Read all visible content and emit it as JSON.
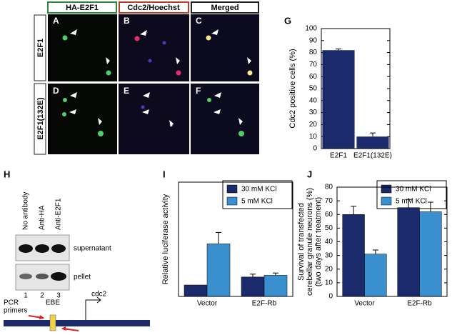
{
  "micrograph": {
    "columns": [
      "HA-E2F1",
      "Cdc2/Hoechst",
      "Merged"
    ],
    "rows": [
      "E2F1",
      "E2F1(132E)"
    ],
    "panel_letters": [
      "A",
      "B",
      "C",
      "D",
      "E",
      "F"
    ]
  },
  "gel": {
    "label": "H",
    "lanes": [
      "No antibody",
      "Anti-HA",
      "Anti-E2F1"
    ],
    "rows": [
      "supernatant",
      "pellet"
    ],
    "lane_numbers": [
      "1",
      "2",
      "3"
    ],
    "diagram": {
      "primers": [
        "PCR",
        "primers"
      ],
      "element": "EBE",
      "gene": "cdc2"
    }
  },
  "chart_data": [
    {
      "type": "bar",
      "label": "G",
      "ylabel": [
        "Cdc2 positive cells (%)"
      ],
      "categories": [
        "E2F1",
        "E2F1(132E)"
      ],
      "values": [
        82,
        10
      ],
      "errors": [
        1,
        3
      ],
      "color": "#1b2a6b",
      "ylim": [
        0,
        100
      ],
      "yticks": [
        0,
        10,
        20,
        30,
        40,
        50,
        60,
        70,
        80,
        90,
        100
      ]
    },
    {
      "type": "grouped-bar",
      "label": "I",
      "ylabel": [
        "Relative luciferase activity"
      ],
      "categories": [
        "Vector",
        "E2F-Rb"
      ],
      "series": [
        {
          "name": "30 mM KCl",
          "color": "#1b2a6b",
          "values": [
            1,
            1.7
          ],
          "errors": [
            0,
            0.25
          ]
        },
        {
          "name": "5 mM KCl",
          "color": "#3a8fcf",
          "values": [
            4.6,
            1.85
          ],
          "errors": [
            1,
            0.2
          ]
        }
      ],
      "ylim": [
        0,
        10
      ]
    },
    {
      "type": "grouped-bar",
      "label": "J",
      "ylabel": [
        "Survival of transfected",
        "cerebellar granule neurons (%)",
        "(two days after treatment)"
      ],
      "categories": [
        "Vector",
        "E2F-Rb"
      ],
      "series": [
        {
          "name": "30 mM KCl",
          "color": "#1b2a6b",
          "values": [
            60,
            65
          ],
          "errors": [
            6,
            6
          ]
        },
        {
          "name": "5 mM KCl",
          "color": "#3a8fcf",
          "values": [
            31,
            62
          ],
          "errors": [
            3,
            7
          ]
        }
      ],
      "ylim": [
        0,
        80
      ],
      "yticks": [
        0,
        10,
        20,
        30,
        40,
        50,
        60,
        70,
        80
      ]
    }
  ]
}
